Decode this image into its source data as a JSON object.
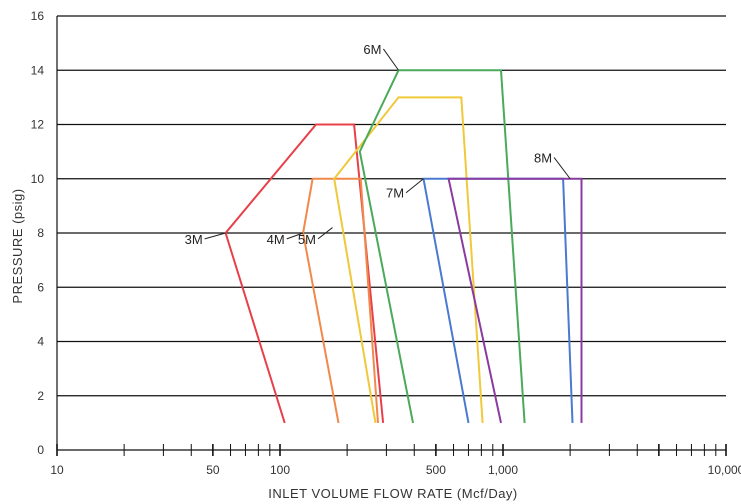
{
  "chart_data": {
    "type": "line",
    "title": "",
    "xlabel": "INLET VOLUME FLOW RATE (Mcf/Day)",
    "ylabel": "PRESSURE (psig)",
    "xscale": "log",
    "xlim": [
      10,
      10000
    ],
    "ylim": [
      0,
      16
    ],
    "x_tick_labels": [
      {
        "value": 10,
        "label": "10"
      },
      {
        "value": 50,
        "label": "50"
      },
      {
        "value": 100,
        "label": "100"
      },
      {
        "value": 500,
        "label": "500"
      },
      {
        "value": 1000,
        "label": "1,000"
      },
      {
        "value": 10000,
        "label": "10,000"
      }
    ],
    "y_ticks": [
      0,
      2,
      4,
      6,
      8,
      10,
      12,
      14,
      16
    ],
    "y_tick_labels": [
      "0",
      "2",
      "4",
      "6",
      "8",
      "10",
      "12",
      "14",
      "16"
    ],
    "grid": "horizontal",
    "series": [
      {
        "name": "3M",
        "color": "#e8404a",
        "points": [
          [
            105,
            1
          ],
          [
            57,
            8
          ],
          [
            145,
            12
          ],
          [
            215,
            12
          ],
          [
            290,
            1
          ]
        ]
      },
      {
        "name": "4M",
        "color": "#f0894a",
        "points": [
          [
            183,
            1
          ],
          [
            127,
            8
          ],
          [
            140,
            10
          ],
          [
            230,
            10
          ],
          [
            275,
            1
          ]
        ]
      },
      {
        "name": "5M",
        "color": "#f0c93a",
        "points": [
          [
            268,
            1
          ],
          [
            175,
            10
          ],
          [
            340,
            13
          ],
          [
            650,
            13
          ],
          [
            810,
            1
          ]
        ]
      },
      {
        "name": "6M",
        "color": "#4aaa5a",
        "points": [
          [
            395,
            1
          ],
          [
            228,
            11
          ],
          [
            340,
            14
          ],
          [
            980,
            14
          ],
          [
            1250,
            1
          ]
        ]
      },
      {
        "name": "7M",
        "color": "#4a7ad0",
        "points": [
          [
            700,
            1
          ],
          [
            440,
            10
          ],
          [
            1860,
            10
          ],
          [
            2050,
            1
          ]
        ]
      },
      {
        "name": "8M",
        "color": "#8a3aa0",
        "points": [
          [
            980,
            1
          ],
          [
            570,
            10
          ],
          [
            2250,
            10
          ],
          [
            2250,
            1
          ]
        ]
      }
    ],
    "annotations": [
      {
        "text": "3M",
        "target": [
          57,
          8
        ],
        "anchor": [
          45,
          7.6
        ]
      },
      {
        "text": "4M",
        "target": [
          127,
          8
        ],
        "anchor": [
          105,
          7.6
        ]
      },
      {
        "text": "5M",
        "target": [
          172,
          8.2
        ],
        "anchor": [
          145,
          7.6
        ]
      },
      {
        "text": "6M",
        "target": [
          340,
          14
        ],
        "anchor": [
          285,
          14.6
        ]
      },
      {
        "text": "7M",
        "target": [
          440,
          10
        ],
        "anchor": [
          360,
          9.3
        ]
      },
      {
        "text": "8M",
        "target": [
          2000,
          10
        ],
        "anchor": [
          1660,
          10.6
        ]
      }
    ]
  }
}
